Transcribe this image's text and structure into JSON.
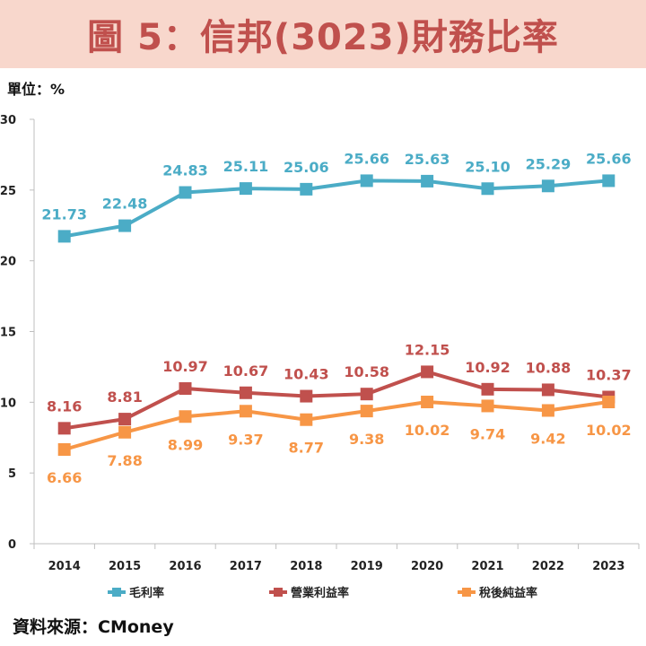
{
  "page": {
    "title": "圖 5：信邦(3023)財務比率",
    "unit": "單位：%",
    "source": "資料來源：CMoney"
  },
  "chart_data": {
    "type": "line",
    "title": "圖 5：信邦(3023)財務比率",
    "xlabel": "",
    "ylabel": "單位：%",
    "categories": [
      "2014",
      "2015",
      "2016",
      "2017",
      "2018",
      "2019",
      "2020",
      "2021",
      "2022",
      "2023"
    ],
    "ylim": [
      0,
      30
    ],
    "yticks": [
      0,
      5,
      10,
      15,
      20,
      25,
      30
    ],
    "grid": false,
    "legend": "bottom",
    "series": [
      {
        "name": "毛利率",
        "color": "#4bacc6",
        "label_color": "#4bacc6",
        "label_position": "above",
        "values": [
          21.73,
          22.48,
          24.83,
          25.11,
          25.06,
          25.66,
          25.63,
          25.1,
          25.29,
          25.66
        ],
        "labels": [
          "21.73",
          "22.48",
          "24.83",
          "25.11",
          "25.06",
          "25.66",
          "25.63",
          "25.10",
          "25.29",
          "25.66"
        ]
      },
      {
        "name": "營業利益率",
        "color": "#c0504d",
        "label_color": "#c0504d",
        "label_position": "above",
        "values": [
          8.16,
          8.81,
          10.97,
          10.67,
          10.43,
          10.58,
          12.15,
          10.92,
          10.88,
          10.37
        ],
        "labels": [
          "8.16",
          "8.81",
          "10.97",
          "10.67",
          "10.43",
          "10.58",
          "12.15",
          "10.92",
          "10.88",
          "10.37"
        ]
      },
      {
        "name": "稅後純益率",
        "color": "#f79646",
        "label_color": "#f79646",
        "label_position": "below",
        "values": [
          6.66,
          7.88,
          8.99,
          9.37,
          8.77,
          9.38,
          10.02,
          9.74,
          9.42,
          10.02
        ],
        "labels": [
          "6.66",
          "7.88",
          "8.99",
          "9.37",
          "8.77",
          "9.38",
          "10.02",
          "9.74",
          "9.42",
          "10.02"
        ]
      }
    ]
  }
}
